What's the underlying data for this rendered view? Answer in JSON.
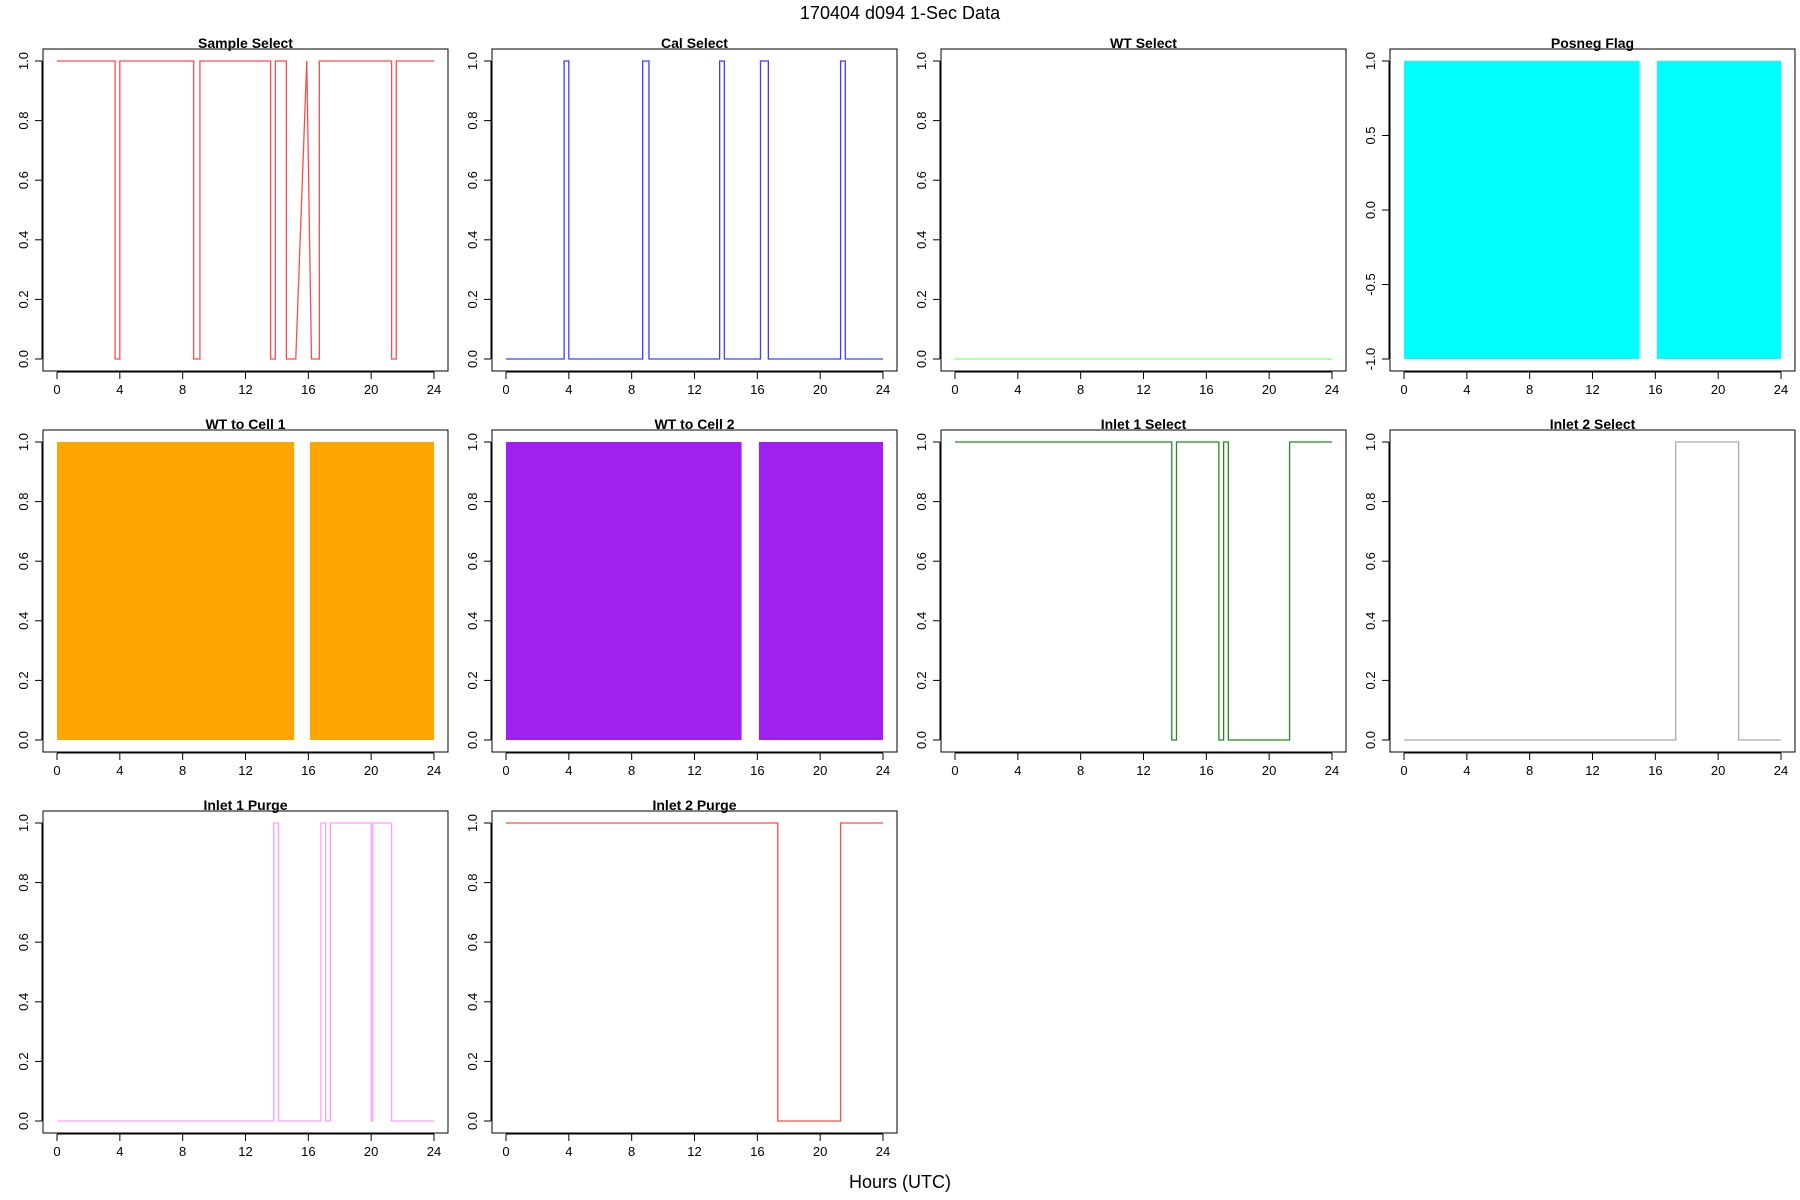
{
  "figure": {
    "title": "170404   d094   1-Sec Data",
    "xlabel": "Hours (UTC)"
  },
  "chart_data": [
    {
      "title": "Sample Select",
      "type": "line",
      "color": "#ff4b4b",
      "xlim": [
        0,
        24
      ],
      "ylim": [
        0,
        1
      ],
      "xticks": [
        0,
        4,
        8,
        12,
        16,
        20,
        24
      ],
      "yticks": [
        0,
        0.2,
        0.4,
        0.6,
        0.8,
        1
      ],
      "ytick_labels": [
        "0.0",
        "0.2",
        "0.4",
        "0.6",
        "0.8",
        "1.0"
      ],
      "series": [
        {
          "x": [
            0,
            3.7,
            3.7,
            4.0,
            4.0,
            8.7,
            8.7,
            9.1,
            9.1,
            13.6,
            13.6,
            13.9,
            13.9,
            14.6,
            14.6,
            15.2,
            15.9,
            15.9,
            16.2,
            16.2,
            16.7,
            16.7,
            21.3,
            21.3,
            21.6,
            21.6,
            24
          ],
          "y": [
            1,
            1,
            0,
            0,
            1,
            1,
            0,
            0,
            1,
            1,
            0,
            0,
            1,
            1,
            0,
            0,
            1,
            1,
            0,
            0,
            0,
            1,
            1,
            0,
            0,
            1,
            1
          ]
        }
      ]
    },
    {
      "title": "Cal Select",
      "type": "line",
      "color": "#3d3dff",
      "xlim": [
        0,
        24
      ],
      "ylim": [
        0,
        1
      ],
      "xticks": [
        0,
        4,
        8,
        12,
        16,
        20,
        24
      ],
      "yticks": [
        0,
        0.2,
        0.4,
        0.6,
        0.8,
        1
      ],
      "ytick_labels": [
        "0.0",
        "0.2",
        "0.4",
        "0.6",
        "0.8",
        "1.0"
      ],
      "series": [
        {
          "x": [
            0,
            3.7,
            3.7,
            4.0,
            4.0,
            8.7,
            8.7,
            9.1,
            9.1,
            13.6,
            13.6,
            13.9,
            13.9,
            16.2,
            16.2,
            16.7,
            16.7,
            21.3,
            21.3,
            21.6,
            21.6,
            24
          ],
          "y": [
            0,
            0,
            1,
            1,
            0,
            0,
            1,
            1,
            0,
            0,
            1,
            1,
            0,
            0,
            1,
            1,
            0,
            0,
            1,
            1,
            0,
            0
          ]
        }
      ]
    },
    {
      "title": "WT Select",
      "type": "line",
      "color": "#7cff7c",
      "xlim": [
        0,
        24
      ],
      "ylim": [
        0,
        1
      ],
      "xticks": [
        0,
        4,
        8,
        12,
        16,
        20,
        24
      ],
      "yticks": [
        0,
        0.2,
        0.4,
        0.6,
        0.8,
        1
      ],
      "ytick_labels": [
        "0.0",
        "0.2",
        "0.4",
        "0.6",
        "0.8",
        "1.0"
      ],
      "series": [
        {
          "x": [
            0,
            24
          ],
          "y": [
            0,
            0
          ]
        }
      ]
    },
    {
      "title": "Posneg Flag",
      "type": "area",
      "color": "#00ffff",
      "xlim": [
        0,
        24
      ],
      "ylim": [
        -1,
        1
      ],
      "xticks": [
        0,
        4,
        8,
        12,
        16,
        20,
        24
      ],
      "yticks": [
        -1,
        -0.5,
        0,
        0.5,
        1
      ],
      "ytick_labels": [
        "-1.0",
        "-0.5",
        "0.0",
        "0.5",
        "1.0"
      ],
      "fill_between": [
        -1,
        1
      ],
      "filled_intervals": [
        [
          0,
          15.0
        ],
        [
          16.1,
          24
        ]
      ]
    },
    {
      "title": "WT to Cell 1",
      "type": "area",
      "color": "#ffa500",
      "xlim": [
        0,
        24
      ],
      "ylim": [
        0,
        1
      ],
      "xticks": [
        0,
        4,
        8,
        12,
        16,
        20,
        24
      ],
      "yticks": [
        0,
        0.2,
        0.4,
        0.6,
        0.8,
        1
      ],
      "ytick_labels": [
        "0.0",
        "0.2",
        "0.4",
        "0.6",
        "0.8",
        "1.0"
      ],
      "fill_between": [
        0,
        1
      ],
      "filled_intervals": [
        [
          0,
          15.1
        ],
        [
          16.1,
          24
        ]
      ]
    },
    {
      "title": "WT to Cell 2",
      "type": "area",
      "color": "#a020f0",
      "xlim": [
        0,
        24
      ],
      "ylim": [
        0,
        1
      ],
      "xticks": [
        0,
        4,
        8,
        12,
        16,
        20,
        24
      ],
      "yticks": [
        0,
        0.2,
        0.4,
        0.6,
        0.8,
        1
      ],
      "ytick_labels": [
        "0.0",
        "0.2",
        "0.4",
        "0.6",
        "0.8",
        "1.0"
      ],
      "fill_between": [
        0,
        1
      ],
      "filled_intervals": [
        [
          0,
          15.0
        ],
        [
          16.1,
          24
        ]
      ]
    },
    {
      "title": "Inlet 1 Select",
      "type": "line",
      "color": "#228b22",
      "xlim": [
        0,
        24
      ],
      "ylim": [
        0,
        1
      ],
      "xticks": [
        0,
        4,
        8,
        12,
        16,
        20,
        24
      ],
      "yticks": [
        0,
        0.2,
        0.4,
        0.6,
        0.8,
        1
      ],
      "ytick_labels": [
        "0.0",
        "0.2",
        "0.4",
        "0.6",
        "0.8",
        "1.0"
      ],
      "series": [
        {
          "x": [
            0,
            13.8,
            13.8,
            14.1,
            14.1,
            16.8,
            16.8,
            17.1,
            17.1,
            17.4,
            17.4,
            21.3,
            21.3,
            24
          ],
          "y": [
            1,
            1,
            0,
            0,
            1,
            1,
            0,
            0,
            1,
            1,
            0,
            0,
            1,
            1
          ]
        }
      ]
    },
    {
      "title": "Inlet 2 Select",
      "type": "line",
      "color": "#aaaaaa",
      "xlim": [
        0,
        24
      ],
      "ylim": [
        0,
        1
      ],
      "xticks": [
        0,
        4,
        8,
        12,
        16,
        20,
        24
      ],
      "yticks": [
        0,
        0.2,
        0.4,
        0.6,
        0.8,
        1
      ],
      "ytick_labels": [
        "0.0",
        "0.2",
        "0.4",
        "0.6",
        "0.8",
        "1.0"
      ],
      "series": [
        {
          "x": [
            0,
            17.3,
            17.3,
            21.3,
            21.3,
            24
          ],
          "y": [
            0,
            0,
            1,
            1,
            0,
            0
          ]
        }
      ]
    },
    {
      "title": "Inlet 1 Purge",
      "type": "line",
      "color": "#ff9cff",
      "xlim": [
        0,
        24
      ],
      "ylim": [
        0,
        1
      ],
      "xticks": [
        0,
        4,
        8,
        12,
        16,
        20,
        24
      ],
      "yticks": [
        0,
        0.2,
        0.4,
        0.6,
        0.8,
        1
      ],
      "ytick_labels": [
        "0.0",
        "0.2",
        "0.4",
        "0.6",
        "0.8",
        "1.0"
      ],
      "series": [
        {
          "x": [
            0,
            13.8,
            13.8,
            14.1,
            14.1,
            16.8,
            16.8,
            17.1,
            17.1,
            17.4,
            17.4,
            20.0,
            20.0,
            20.1,
            20.1,
            21.3,
            21.3,
            24
          ],
          "y": [
            0,
            0,
            1,
            1,
            0,
            0,
            1,
            1,
            0,
            0,
            1,
            1,
            0,
            0,
            1,
            1,
            0,
            0
          ]
        }
      ]
    },
    {
      "title": "Inlet 2 Purge",
      "type": "line",
      "color": "#ff4b4b",
      "xlim": [
        0,
        24
      ],
      "ylim": [
        0,
        1
      ],
      "xticks": [
        0,
        4,
        8,
        12,
        16,
        20,
        24
      ],
      "yticks": [
        0,
        0.2,
        0.4,
        0.6,
        0.8,
        1
      ],
      "ytick_labels": [
        "0.0",
        "0.2",
        "0.4",
        "0.6",
        "0.8",
        "1.0"
      ],
      "series": [
        {
          "x": [
            0,
            17.3,
            17.3,
            21.3,
            21.3,
            24
          ],
          "y": [
            1,
            1,
            0,
            0,
            1,
            1
          ]
        }
      ]
    }
  ]
}
